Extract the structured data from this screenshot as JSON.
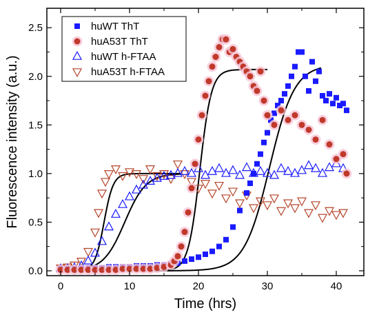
{
  "chart_data": {
    "type": "scatter",
    "xlabel": "Time (hrs)",
    "ylabel": "Fluorescence intensity (a.u.)",
    "xlim": [
      -2,
      44
    ],
    "ylim": [
      -0.05,
      2.7
    ],
    "xticks": [
      0,
      10,
      20,
      30,
      40
    ],
    "yticks": [
      0.0,
      0.5,
      1.0,
      1.5,
      2.0,
      2.5
    ],
    "xtick_labels": [
      "0",
      "10",
      "20",
      "30",
      "40"
    ],
    "ytick_labels": [
      "0.0",
      "0.5",
      "1.0",
      "1.5",
      "2.0",
      "2.5"
    ],
    "legend_position": "top-left",
    "series": [
      {
        "name": "huWT ThT",
        "marker": "square",
        "color": "#1a1aff",
        "x": [
          0,
          1,
          2,
          3,
          4,
          5,
          6,
          7,
          8,
          9,
          10,
          11,
          12,
          13,
          14,
          15,
          16,
          17,
          18,
          19,
          20,
          21,
          22,
          23,
          24,
          25,
          26,
          27,
          27.5,
          28,
          28.5,
          29,
          29.5,
          30,
          30.5,
          31,
          31.5,
          32,
          32.5,
          33,
          33.5,
          34,
          34.5,
          35,
          35.5,
          36,
          36.5,
          37,
          37.5,
          38,
          38.5,
          39,
          39.5,
          40,
          40.5,
          41,
          41.5
        ],
        "y": [
          0.02,
          0.02,
          0.02,
          0.03,
          0.03,
          0.03,
          0.03,
          0.04,
          0.04,
          0.04,
          0.04,
          0.05,
          0.05,
          0.05,
          0.06,
          0.06,
          0.07,
          0.08,
          0.1,
          0.12,
          0.14,
          0.17,
          0.2,
          0.25,
          0.32,
          0.45,
          0.62,
          0.8,
          0.9,
          1.0,
          1.1,
          1.2,
          1.32,
          1.42,
          1.55,
          1.62,
          1.7,
          1.75,
          1.82,
          1.9,
          2.0,
          2.1,
          2.25,
          2.25,
          2.0,
          1.85,
          2.15,
          1.95,
          2.05,
          1.8,
          1.75,
          1.82,
          1.72,
          1.78,
          1.7,
          1.72,
          1.65
        ]
      },
      {
        "name": "huA53T ThT",
        "marker": "circle",
        "color": "#c0392b",
        "x": [
          0,
          1,
          2,
          3,
          4,
          5,
          6,
          7,
          8,
          9,
          10,
          11,
          12,
          13,
          14,
          15,
          16,
          16.5,
          17,
          17.5,
          18,
          18.5,
          19,
          19.5,
          20,
          20.5,
          21,
          21.5,
          22,
          22.5,
          23,
          23.5,
          24,
          24.5,
          25,
          25.5,
          26,
          26.5,
          27,
          27.5,
          28,
          28.5,
          29,
          29.5,
          30,
          31,
          32,
          33,
          34,
          35,
          36,
          37,
          38,
          39,
          40,
          41,
          41.5
        ],
        "y": [
          0.01,
          0.01,
          0.01,
          0.01,
          0.01,
          0.01,
          0.01,
          0.01,
          0.01,
          0.02,
          0.02,
          0.02,
          0.02,
          0.02,
          0.03,
          0.04,
          0.06,
          0.1,
          0.15,
          0.25,
          0.4,
          0.6,
          0.85,
          1.1,
          1.35,
          1.6,
          1.8,
          1.95,
          2.1,
          2.2,
          2.3,
          2.38,
          2.38,
          2.25,
          2.28,
          2.2,
          2.15,
          2.1,
          2.05,
          2.0,
          1.9,
          1.85,
          2.05,
          1.75,
          1.6,
          1.5,
          1.65,
          1.55,
          1.6,
          1.5,
          1.45,
          1.35,
          1.55,
          1.3,
          1.15,
          1.2,
          1.0
        ]
      },
      {
        "name": "huWT h-FTAA",
        "marker": "triangle-up",
        "color": "#1a1aff",
        "x": [
          0,
          1,
          2,
          3,
          4,
          5,
          6,
          7,
          8,
          9,
          10,
          11,
          12,
          13,
          14,
          15,
          16,
          17,
          18,
          19,
          20,
          21,
          22,
          23,
          24,
          25,
          26,
          27,
          28,
          29,
          30,
          31,
          32,
          33,
          34,
          35,
          36,
          37,
          38,
          39,
          40,
          41
        ],
        "y": [
          0.02,
          0.02,
          0.03,
          0.05,
          0.1,
          0.18,
          0.3,
          0.45,
          0.58,
          0.68,
          0.76,
          0.83,
          0.88,
          0.92,
          0.95,
          0.97,
          0.98,
          1.0,
          1.02,
          1.0,
          1.05,
          0.98,
          1.02,
          1.05,
          1.0,
          1.03,
          0.98,
          1.06,
          1.0,
          1.02,
          1.0,
          0.98,
          1.05,
          1.02,
          1.0,
          1.03,
          1.08,
          1.05,
          1.0,
          1.06,
          1.1,
          1.05
        ]
      },
      {
        "name": "huA53T h-FTAA",
        "marker": "triangle-down",
        "color": "#b5452b",
        "x": [
          0,
          1,
          2,
          3,
          4,
          5,
          5.5,
          6,
          6.5,
          7,
          8,
          9,
          10,
          11,
          12,
          13,
          14,
          15,
          16,
          17,
          18,
          19,
          20,
          21,
          22,
          23,
          24,
          25,
          26,
          27,
          28,
          29,
          30,
          31,
          32,
          33,
          34,
          35,
          36,
          37,
          38,
          39,
          40,
          41
        ],
        "y": [
          0.03,
          0.04,
          0.06,
          0.1,
          0.2,
          0.4,
          0.6,
          0.8,
          0.92,
          1.0,
          1.05,
          0.98,
          1.02,
          1.0,
          0.95,
          1.05,
          0.98,
          1.0,
          0.95,
          1.1,
          1.0,
          0.92,
          0.85,
          0.9,
          0.8,
          0.88,
          0.75,
          0.82,
          0.7,
          0.78,
          0.65,
          0.72,
          0.68,
          0.75,
          0.62,
          0.7,
          0.65,
          0.72,
          0.6,
          0.68,
          0.55,
          0.62,
          0.58,
          0.6
        ]
      }
    ],
    "fits": [
      {
        "ymax": 2.12,
        "x0": 30.3,
        "k": 0.55,
        "xstart": 0,
        "xend": 37.8
      },
      {
        "ymax": 2.07,
        "x0": 20.2,
        "k": 1.2,
        "xstart": 0,
        "xend": 30
      },
      {
        "ymax": 1.0,
        "x0": 9.3,
        "k": 0.65,
        "xstart": 0,
        "xend": 17.5
      },
      {
        "ymax": 1.0,
        "x0": 6.3,
        "k": 1.5,
        "xstart": 0,
        "xend": 17.5
      }
    ]
  }
}
